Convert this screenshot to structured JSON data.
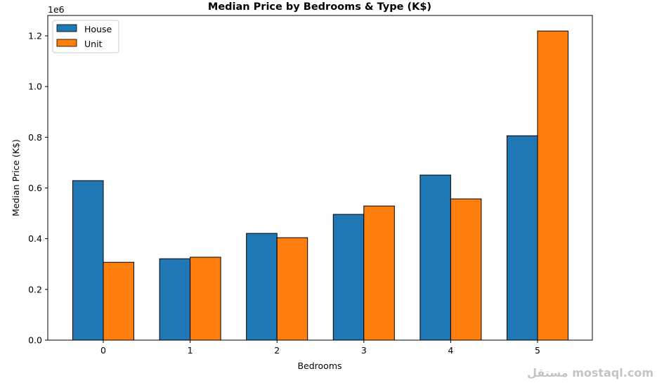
{
  "chart_data": {
    "type": "bar",
    "title": "Median Price by Bedrooms & Type (K$)",
    "xlabel": "Bedrooms",
    "ylabel": "Median Price (K$)",
    "y_offset_label": "1e6",
    "categories": [
      "0",
      "1",
      "2",
      "3",
      "4",
      "5"
    ],
    "series": [
      {
        "name": "House",
        "color": "#1f77b4",
        "values": [
          629000,
          321000,
          421000,
          496000,
          651000,
          806000
        ]
      },
      {
        "name": "Unit",
        "color": "#ff7f0e",
        "values": [
          307000,
          327000,
          404000,
          529000,
          557000,
          1219000
        ]
      }
    ],
    "ylim": [
      0,
      1280000
    ],
    "yticks": [
      0,
      200000,
      400000,
      600000,
      800000,
      1000000,
      1200000
    ],
    "ytick_labels": [
      "0.0",
      "0.2",
      "0.4",
      "0.6",
      "0.8",
      "1.0",
      "1.2"
    ],
    "grid": false,
    "legend": "top-left"
  },
  "watermark": "مستقل mostaql.com"
}
